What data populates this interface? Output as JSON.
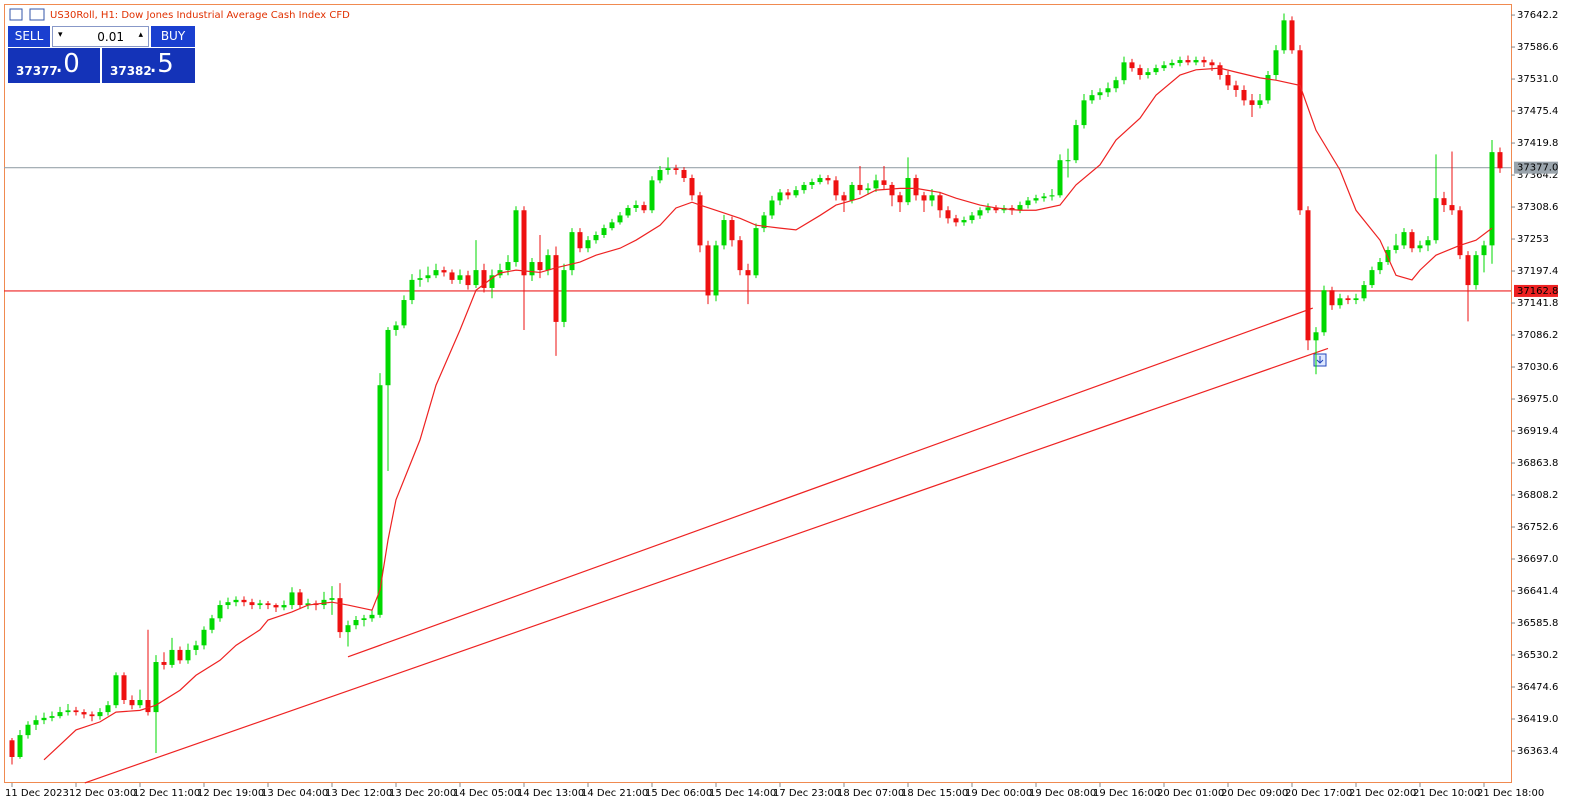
{
  "chart_data": {
    "type": "candlestick",
    "title": "US30Roll, H1:  Dow Jones Industrial Average Cash Index CFD",
    "up_color": "#00d800",
    "down_color": "#ee1111",
    "ylim": [
      36307.8,
      37661.4
    ],
    "yticks": [
      37642.2,
      37586.6,
      {
        "value": 37531.0,
        "label": "37531.0"
      },
      37475.4,
      37419.8,
      37364.2,
      37308.6,
      37253.0,
      37197.4,
      37141.8,
      37086.2,
      37030.6,
      {
        "value": 36975.0,
        "label": "36975.0"
      },
      36919.4,
      36863.8,
      36808.2,
      36752.6,
      {
        "value": 36697.0,
        "label": "36697.0"
      },
      36641.4,
      36585.8,
      36530.2,
      36474.6,
      {
        "value": 36419.0,
        "label": "36419.0"
      },
      36363.4
    ],
    "xticks": [
      {
        "value": 0,
        "label": "11 Dec 2023"
      },
      {
        "value": 8,
        "label": "12 Dec 03:00"
      },
      {
        "value": 16,
        "label": "12 Dec 11:00"
      },
      {
        "value": 24,
        "label": "12 Dec 19:00"
      },
      {
        "value": 32,
        "label": "13 Dec 04:00"
      },
      {
        "value": 40,
        "label": "13 Dec 12:00"
      },
      {
        "value": 48,
        "label": "13 Dec 20:00"
      },
      {
        "value": 56,
        "label": "14 Dec 05:00"
      },
      {
        "value": 64,
        "label": "14 Dec 13:00"
      },
      {
        "value": 72,
        "label": "14 Dec 21:00"
      },
      {
        "value": 80,
        "label": "15 Dec 06:00"
      },
      {
        "value": 88,
        "label": "15 Dec 14:00"
      },
      {
        "value": 96,
        "label": "17 Dec 23:00"
      },
      {
        "value": 104,
        "label": "18 Dec 07:00"
      },
      {
        "value": 112,
        "label": "18 Dec 15:00"
      },
      {
        "value": 120,
        "label": "19 Dec 00:00"
      },
      {
        "value": 128,
        "label": "19 Dec 08:00"
      },
      {
        "value": 136,
        "label": "19 Dec 16:00"
      },
      {
        "value": 144,
        "label": "20 Dec 01:00"
      },
      {
        "value": 152,
        "label": "20 Dec 09:00"
      },
      {
        "value": 160,
        "label": "20 Dec 17:00"
      },
      {
        "value": 168,
        "label": "21 Dec 02:00"
      },
      {
        "value": 176,
        "label": "21 Dec 10:00"
      },
      {
        "value": 184,
        "label": "21 Dec 18:00"
      }
    ],
    "candles": [
      [
        36382,
        36386,
        36340,
        36353
      ],
      [
        36353,
        36400,
        36350,
        36391
      ],
      [
        36391,
        36415,
        36385,
        36409
      ],
      [
        36409,
        36425,
        36400,
        36417
      ],
      [
        36417,
        36430,
        36410,
        36421
      ],
      [
        36421,
        36432,
        36415,
        36424
      ],
      [
        36424,
        36440,
        36420,
        36431
      ],
      [
        36431,
        36445,
        36425,
        36434
      ],
      [
        36434,
        36440,
        36425,
        36431
      ],
      [
        36431,
        36436,
        36420,
        36427
      ],
      [
        36427,
        36432,
        36415,
        36424
      ],
      [
        36424,
        36438,
        36418,
        36431
      ],
      [
        36431,
        36450,
        36425,
        36443
      ],
      [
        36443,
        36500,
        36438,
        36495
      ],
      [
        36495,
        36500,
        36445,
        36452
      ],
      [
        36452,
        36460,
        36436,
        36443
      ],
      [
        36443,
        36470,
        36438,
        36452
      ],
      [
        36452,
        36574,
        36425,
        36431
      ],
      [
        36431,
        36530,
        36360,
        36518
      ],
      [
        36518,
        36535,
        36505,
        36513
      ],
      [
        36513,
        36560,
        36508,
        36539
      ],
      [
        36539,
        36545,
        36515,
        36521
      ],
      [
        36521,
        36550,
        36515,
        36539
      ],
      [
        36539,
        36555,
        36530,
        36547
      ],
      [
        36547,
        36580,
        36540,
        36574
      ],
      [
        36574,
        36600,
        36568,
        36594
      ],
      [
        36594,
        36625,
        36588,
        36617
      ],
      [
        36617,
        36630,
        36610,
        36622
      ],
      [
        36622,
        36632,
        36615,
        36626
      ],
      [
        36626,
        36632,
        36615,
        36622
      ],
      [
        36622,
        36628,
        36610,
        36617
      ],
      [
        36617,
        36626,
        36610,
        36620
      ],
      [
        36620,
        36624,
        36610,
        36617
      ],
      [
        36617,
        36620,
        36605,
        36613
      ],
      [
        36613,
        36625,
        36608,
        36617
      ],
      [
        36617,
        36648,
        36610,
        36639
      ],
      [
        36639,
        36645,
        36610,
        36617
      ],
      [
        36617,
        36628,
        36610,
        36620
      ],
      [
        36620,
        36625,
        36608,
        36617
      ],
      [
        36617,
        36640,
        36610,
        36626
      ],
      [
        36626,
        36650,
        36600,
        36629
      ],
      [
        36629,
        36655,
        36560,
        36570
      ],
      [
        36570,
        36590,
        36545,
        36582
      ],
      [
        36582,
        36598,
        36575,
        36591
      ],
      [
        36591,
        36600,
        36580,
        36594
      ],
      [
        36594,
        36610,
        36588,
        36600
      ],
      [
        36600,
        37020,
        36595,
        36999
      ],
      [
        36999,
        37100,
        36850,
        37095
      ],
      [
        37095,
        37110,
        37085,
        37103
      ],
      [
        37103,
        37155,
        37098,
        37147
      ],
      [
        37147,
        37192,
        37140,
        37182
      ],
      [
        37182,
        37200,
        37170,
        37185
      ],
      [
        37185,
        37205,
        37178,
        37190
      ],
      [
        37190,
        37210,
        37185,
        37199
      ],
      [
        37199,
        37205,
        37188,
        37195
      ],
      [
        37195,
        37200,
        37175,
        37182
      ],
      [
        37182,
        37200,
        37175,
        37190
      ],
      [
        37190,
        37198,
        37165,
        37173
      ],
      [
        37173,
        37251,
        37168,
        37199
      ],
      [
        37199,
        37210,
        37160,
        37168
      ],
      [
        37168,
        37200,
        37150,
        37190
      ],
      [
        37190,
        37210,
        37185,
        37199
      ],
      [
        37199,
        37225,
        37190,
        37213
      ],
      [
        37213,
        37310,
        37205,
        37303
      ],
      [
        37303,
        37310,
        37095,
        37190
      ],
      [
        37190,
        37220,
        37180,
        37213
      ],
      [
        37213,
        37260,
        37185,
        37199
      ],
      [
        37199,
        37235,
        37190,
        37225
      ],
      [
        37225,
        37240,
        37050,
        37109
      ],
      [
        37109,
        37210,
        37100,
        37199
      ],
      [
        37199,
        37272,
        37190,
        37265
      ],
      [
        37265,
        37272,
        37230,
        37237
      ],
      [
        37237,
        37258,
        37230,
        37251
      ],
      [
        37251,
        37266,
        37245,
        37260
      ],
      [
        37260,
        37278,
        37255,
        37272
      ],
      [
        37272,
        37288,
        37268,
        37282
      ],
      [
        37282,
        37300,
        37278,
        37294
      ],
      [
        37294,
        37312,
        37290,
        37307
      ],
      [
        37307,
        37320,
        37300,
        37312
      ],
      [
        37312,
        37318,
        37298,
        37303
      ],
      [
        37303,
        37362,
        37298,
        37355
      ],
      [
        37355,
        37380,
        37350,
        37373
      ],
      [
        37373,
        37395,
        37365,
        37376
      ],
      [
        37376,
        37382,
        37365,
        37373
      ],
      [
        37373,
        37378,
        37352,
        37359
      ],
      [
        37359,
        37365,
        37320,
        37329
      ],
      [
        37329,
        37335,
        37230,
        37242
      ],
      [
        37242,
        37250,
        37140,
        37155
      ],
      [
        37155,
        37250,
        37145,
        37242
      ],
      [
        37242,
        37295,
        37235,
        37286
      ],
      [
        37286,
        37292,
        37240,
        37251
      ],
      [
        37251,
        37258,
        37190,
        37199
      ],
      [
        37199,
        37210,
        37140,
        37190
      ],
      [
        37190,
        37280,
        37185,
        37272
      ],
      [
        37272,
        37300,
        37265,
        37294
      ],
      [
        37294,
        37328,
        37288,
        37320
      ],
      [
        37320,
        37340,
        37312,
        37334
      ],
      [
        37334,
        37340,
        37322,
        37329
      ],
      [
        37329,
        37345,
        37325,
        37338
      ],
      [
        37338,
        37352,
        37332,
        37347
      ],
      [
        37347,
        37358,
        37340,
        37352
      ],
      [
        37352,
        37365,
        37348,
        37359
      ],
      [
        37359,
        37364,
        37348,
        37355
      ],
      [
        37355,
        37362,
        37320,
        37329
      ],
      [
        37329,
        37335,
        37300,
        37320
      ],
      [
        37320,
        37352,
        37315,
        37347
      ],
      [
        37347,
        37380,
        37330,
        37338
      ],
      [
        37338,
        37350,
        37330,
        37341
      ],
      [
        37341,
        37365,
        37335,
        37355
      ],
      [
        37355,
        37380,
        37340,
        37347
      ],
      [
        37347,
        37352,
        37310,
        37329
      ],
      [
        37329,
        37335,
        37300,
        37317
      ],
      [
        37317,
        37395,
        37312,
        37359
      ],
      [
        37359,
        37365,
        37320,
        37329
      ],
      [
        37329,
        37335,
        37300,
        37320
      ],
      [
        37320,
        37340,
        37310,
        37329
      ],
      [
        37329,
        37335,
        37290,
        37303
      ],
      [
        37303,
        37310,
        37280,
        37289
      ],
      [
        37289,
        37295,
        37275,
        37282
      ],
      [
        37282,
        37292,
        37276,
        37286
      ],
      [
        37286,
        37300,
        37280,
        37294
      ],
      [
        37294,
        37308,
        37288,
        37303
      ],
      [
        37303,
        37315,
        37298,
        37308
      ],
      [
        37308,
        37312,
        37298,
        37303
      ],
      [
        37303,
        37312,
        37298,
        37307
      ],
      [
        37307,
        37312,
        37295,
        37303
      ],
      [
        37303,
        37318,
        37298,
        37312
      ],
      [
        37312,
        37326,
        37306,
        37320
      ],
      [
        37320,
        37330,
        37315,
        37324
      ],
      [
        37324,
        37333,
        37318,
        37327
      ],
      [
        37327,
        37340,
        37320,
        37329
      ],
      [
        37329,
        37400,
        37325,
        37390
      ],
      [
        37390,
        37410,
        37360,
        37390
      ],
      [
        37390,
        37460,
        37385,
        37451
      ],
      [
        37451,
        37505,
        37445,
        37494
      ],
      [
        37494,
        37512,
        37488,
        37503
      ],
      [
        37503,
        37515,
        37495,
        37508
      ],
      [
        37508,
        37525,
        37500,
        37515
      ],
      [
        37515,
        37535,
        37508,
        37529
      ],
      [
        37529,
        37570,
        37522,
        37560
      ],
      [
        37560,
        37566,
        37544,
        37550
      ],
      [
        37550,
        37556,
        37530,
        37538
      ],
      [
        37538,
        37550,
        37532,
        37543
      ],
      [
        37543,
        37556,
        37538,
        37550
      ],
      [
        37550,
        37562,
        37545,
        37555
      ],
      [
        37555,
        37565,
        37550,
        37559
      ],
      [
        37559,
        37570,
        37553,
        37564
      ],
      [
        37564,
        37572,
        37555,
        37560
      ],
      [
        37560,
        37570,
        37555,
        37564
      ],
      [
        37564,
        37570,
        37552,
        37560
      ],
      [
        37560,
        37565,
        37545,
        37555
      ],
      [
        37555,
        37560,
        37530,
        37538
      ],
      [
        37538,
        37545,
        37512,
        37520
      ],
      [
        37520,
        37528,
        37500,
        37512
      ],
      [
        37512,
        37520,
        37485,
        37494
      ],
      [
        37494,
        37505,
        37465,
        37486
      ],
      [
        37486,
        37505,
        37480,
        37494
      ],
      [
        37494,
        37545,
        37488,
        37538
      ],
      [
        37538,
        37590,
        37530,
        37581
      ],
      [
        37581,
        37645,
        37575,
        37633
      ],
      [
        37633,
        37640,
        37575,
        37581
      ],
      [
        37581,
        37590,
        37295,
        37303
      ],
      [
        37303,
        37310,
        37060,
        37077
      ],
      [
        37077,
        37100,
        37018,
        37091
      ],
      [
        37091,
        37172,
        37085,
        37164
      ],
      [
        37164,
        37170,
        37130,
        37138
      ],
      [
        37138,
        37158,
        37132,
        37150
      ],
      [
        37150,
        37155,
        37140,
        37147
      ],
      [
        37147,
        37158,
        37140,
        37150
      ],
      [
        37150,
        37180,
        37145,
        37173
      ],
      [
        37173,
        37205,
        37168,
        37199
      ],
      [
        37199,
        37220,
        37192,
        37213
      ],
      [
        37213,
        37240,
        37208,
        37234
      ],
      [
        37234,
        37262,
        37228,
        37242
      ],
      [
        37242,
        37272,
        37236,
        37265
      ],
      [
        37265,
        37270,
        37230,
        37237
      ],
      [
        37237,
        37250,
        37230,
        37242
      ],
      [
        37242,
        37258,
        37232,
        37251
      ],
      [
        37251,
        37400,
        37245,
        37324
      ],
      [
        37324,
        37335,
        37300,
        37312
      ],
      [
        37312,
        37405,
        37295,
        37303
      ],
      [
        37303,
        37310,
        37218,
        37225
      ],
      [
        37225,
        37232,
        37110,
        37173
      ],
      [
        37173,
        37232,
        37165,
        37225
      ],
      [
        37225,
        37250,
        37195,
        37242
      ],
      [
        37242,
        37425,
        37210,
        37404
      ],
      [
        37404,
        37412,
        37368,
        37376
      ]
    ],
    "ma": {
      "color": "#ee2222",
      "x": [
        4,
        6,
        8,
        11,
        13,
        16,
        18,
        21,
        23,
        26,
        28,
        31,
        32,
        35,
        37,
        40,
        42,
        45,
        46,
        47,
        48,
        51,
        53,
        56,
        58,
        60,
        61,
        63,
        66,
        68,
        71,
        73,
        76,
        78,
        81,
        83,
        85,
        86,
        88,
        91,
        93,
        96,
        98,
        101,
        103,
        106,
        108,
        111,
        113,
        116,
        118,
        121,
        123,
        126,
        128,
        131,
        133,
        136,
        138,
        141,
        143,
        146,
        148,
        151,
        153,
        156,
        158,
        161,
        163,
        166,
        168,
        171,
        173,
        175,
        176,
        178,
        181,
        183,
        185
      ],
      "values": [
        36348,
        36374,
        36400,
        36414,
        36431,
        36434,
        36443,
        36469,
        36495,
        36521,
        36547,
        36574,
        36591,
        36605,
        36617,
        36622,
        36617,
        36608,
        36643,
        36730,
        36800,
        36904,
        36999,
        37095,
        37164,
        37185,
        37194,
        37199,
        37195,
        37203,
        37213,
        37225,
        37237,
        37251,
        37277,
        37307,
        37317,
        37312,
        37303,
        37289,
        37277,
        37272,
        37269,
        37294,
        37312,
        37324,
        37338,
        37341,
        37341,
        37334,
        37324,
        37312,
        37307,
        37303,
        37303,
        37312,
        37347,
        37382,
        37425,
        37463,
        37503,
        37538,
        37547,
        37550,
        37543,
        37533,
        37529,
        37520,
        37442,
        37373,
        37303,
        37251,
        37190,
        37182,
        37199,
        37225,
        37242,
        37251,
        37272
      ]
    },
    "trendlines": [
      {
        "color": "#ee2222",
        "x": [
          42,
          162.6
        ],
        "values": [
          36527,
          37133
        ]
      },
      {
        "color": "#ee2222",
        "x": [
          9.1,
          164.5
        ],
        "values": [
          36308,
          37063
        ]
      }
    ],
    "price_lines": [
      {
        "value": 37377.0,
        "label": "37377.0",
        "color": "#9aa4ac"
      },
      {
        "value": 37162.8,
        "color": "#ee2222"
      }
    ]
  },
  "trade_panel": {
    "sell": "SELL",
    "buy": "BUY",
    "volume": "0.01",
    "bid_main": "37377",
    "bid_tail": ".0",
    "ask_main": "37382",
    "ask_tail": ".5"
  }
}
